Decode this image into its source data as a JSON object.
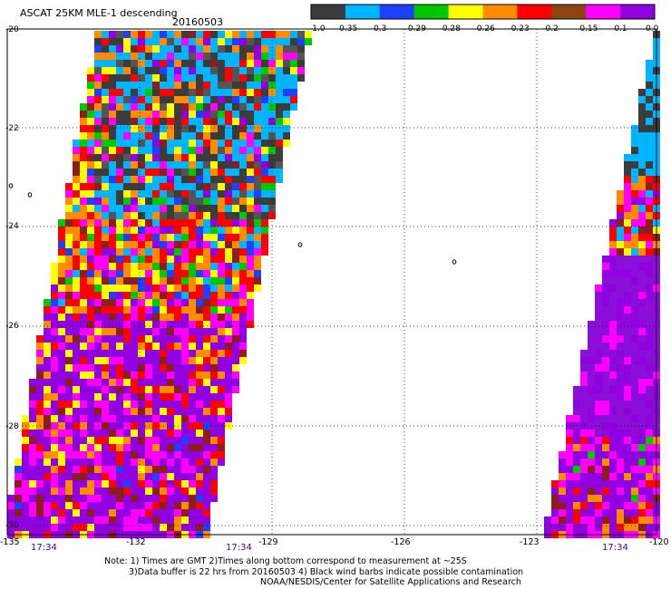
{
  "title": "ASCAT 25KM MLE-1 descending",
  "date": "20160503",
  "colorbar": {
    "labels": [
      "-1.0",
      "-0.35",
      "-0.3",
      "-0.29",
      "-0.28",
      "-0.26",
      "-0.23",
      "-0.2",
      "-0.15",
      "-0.1",
      "0.0"
    ],
    "colors": [
      "#3c3c3c",
      "#00b4ff",
      "#2040ff",
      "#00c800",
      "#ffff00",
      "#ff8c00",
      "#ff0000",
      "#8c4614",
      "#ff00ff",
      "#9000e0"
    ]
  },
  "lat_labels": [
    "-20",
    "-22",
    "-24",
    "-26",
    "-28",
    "-30"
  ],
  "lon_labels": [
    "-135",
    "-132",
    "-129",
    "-126",
    "-123",
    "-120"
  ],
  "times": [
    "17:34",
    "17:34",
    "17:34"
  ],
  "notes": {
    "line1": "Note: 1) Times are GMT 2)Times along bottom correspond to measurement at ~25S",
    "line2": "3)Data buffer is 22 hrs from 20160503 4) Black wind barbs indicate possible contamination",
    "line3": "NOAA/NESDIS/Center for Satellite Applications and Research"
  }
}
